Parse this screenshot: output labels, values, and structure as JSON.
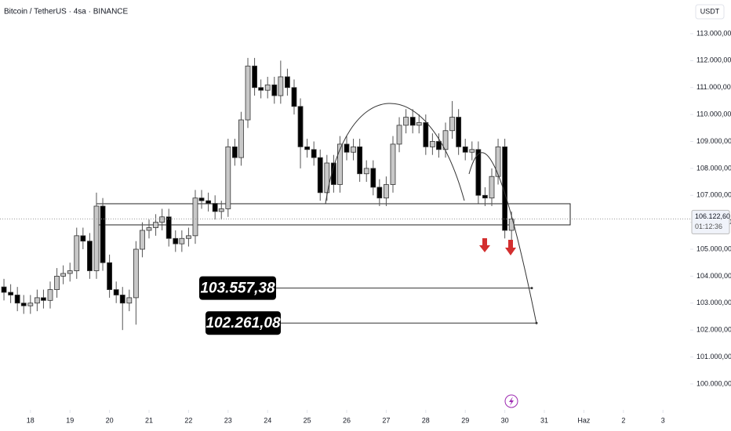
{
  "chart_data": {
    "type": "candlestick",
    "title": "Bitcoin / TetherUS · 4sa · BINANCE",
    "currency": "USDT",
    "x": [
      17.33,
      17.5,
      17.67,
      17.83,
      18.0,
      18.17,
      18.33,
      18.5,
      18.67,
      18.83,
      19.0,
      19.17,
      19.33,
      19.5,
      19.67,
      19.83,
      20.0,
      20.17,
      20.33,
      20.5,
      20.67,
      20.83,
      21.0,
      21.17,
      21.33,
      21.5,
      21.67,
      21.83,
      22.0,
      22.17,
      22.33,
      22.5,
      22.67,
      22.83,
      23.0,
      23.17,
      23.33,
      23.5,
      23.67,
      23.83,
      24.0,
      24.17,
      24.33,
      24.5,
      24.67,
      24.83,
      25.0,
      25.17,
      25.33,
      25.5,
      25.67,
      25.83,
      26.0,
      26.17,
      26.33,
      26.5,
      26.67,
      26.83,
      27.0,
      27.17,
      27.33,
      27.5,
      27.67,
      27.83,
      28.0,
      28.17,
      28.33,
      28.5,
      28.67,
      28.83,
      29.0,
      29.17,
      29.33,
      29.5,
      29.67,
      29.83,
      30.0,
      30.17
    ],
    "open": [
      103600,
      103400,
      103300,
      103000,
      102900,
      103000,
      103200,
      103100,
      103500,
      104000,
      104100,
      104200,
      105500,
      105300,
      104200,
      106600,
      104500,
      103500,
      103300,
      103000,
      103200,
      105000,
      105700,
      105800,
      106000,
      106200,
      105400,
      105200,
      105400,
      105500,
      106900,
      106800,
      106700,
      106400,
      106500,
      108800,
      108400,
      109800,
      111800,
      111000,
      110900,
      111100,
      110700,
      111400,
      111000,
      110300,
      108800,
      108700,
      108400,
      107100,
      108200,
      107400,
      108900,
      108600,
      108800,
      107800,
      108000,
      107300,
      106900,
      107400,
      108900,
      109600,
      109900,
      109600,
      109700,
      108800,
      109000,
      108700,
      109400,
      109900,
      108800,
      108600,
      108700,
      107000,
      106900,
      107700,
      108800,
      105700
    ],
    "high": [
      103900,
      103700,
      103600,
      103300,
      103300,
      103500,
      103500,
      103800,
      104300,
      104400,
      104500,
      105800,
      105800,
      105600,
      107100,
      106900,
      104800,
      103800,
      103600,
      103500,
      105300,
      106000,
      106100,
      106300,
      106500,
      106500,
      105700,
      105700,
      105800,
      107200,
      107200,
      107100,
      107000,
      106800,
      109100,
      109100,
      110100,
      112100,
      112100,
      111300,
      111400,
      111400,
      112000,
      111700,
      111300,
      110600,
      109100,
      109000,
      108700,
      108500,
      108500,
      109200,
      109200,
      109100,
      109100,
      108300,
      108300,
      107600,
      107700,
      109200,
      109900,
      110200,
      110200,
      110000,
      110000,
      109300,
      109300,
      109700,
      110500,
      110200,
      109100,
      109000,
      109000,
      107300,
      108000,
      109100,
      109100,
      106400
    ],
    "low": [
      103100,
      103000,
      102700,
      102600,
      102600,
      102700,
      102800,
      102800,
      103200,
      103700,
      103800,
      103900,
      105000,
      103900,
      103900,
      104200,
      103200,
      103000,
      102000,
      102700,
      102200,
      104700,
      105400,
      105500,
      105700,
      105100,
      104900,
      104900,
      105100,
      105200,
      106500,
      106400,
      106100,
      106100,
      106200,
      108100,
      108100,
      109500,
      110700,
      110600,
      110600,
      110400,
      110400,
      110700,
      110000,
      108000,
      108400,
      108100,
      106800,
      106800,
      107100,
      107100,
      108300,
      108300,
      107500,
      107500,
      107000,
      106600,
      106600,
      107100,
      108600,
      109300,
      109300,
      109300,
      108500,
      108500,
      108400,
      108400,
      109100,
      108500,
      108300,
      108300,
      106700,
      106600,
      106600,
      107400,
      105400,
      104900
    ],
    "close": [
      103400,
      103300,
      103000,
      102900,
      103000,
      103200,
      103100,
      103500,
      104000,
      104100,
      104200,
      105500,
      105300,
      104200,
      106600,
      104500,
      103500,
      103300,
      103000,
      103200,
      105000,
      105700,
      105800,
      106000,
      106200,
      105400,
      105200,
      105400,
      105500,
      106900,
      106800,
      106700,
      106400,
      106500,
      108800,
      108400,
      109800,
      111800,
      111000,
      110900,
      111100,
      110700,
      111400,
      111000,
      110300,
      108800,
      108700,
      108400,
      107100,
      108200,
      107400,
      108900,
      108600,
      108800,
      107800,
      108000,
      107300,
      106900,
      107400,
      108900,
      109600,
      109900,
      109600,
      109700,
      108800,
      109000,
      108700,
      109400,
      109900,
      108800,
      108600,
      108700,
      107000,
      106900,
      107700,
      108800,
      105700,
      106122.6
    ],
    "up_color": "#c8c8c8",
    "down_color": "#000000",
    "xlim": [
      17.23,
      34.69
    ],
    "xticks": [
      18,
      19,
      20,
      21,
      22,
      23,
      24,
      25,
      26,
      27,
      28,
      29,
      30,
      31,
      {
        "value": 32,
        "label": "Haz"
      },
      {
        "value": 33,
        "label": "2"
      },
      {
        "value": 34,
        "label": "3"
      }
    ],
    "ylim": [
      99038,
      114250
    ],
    "yticks": [
      {
        "value": 113000,
        "label": "113.000,00"
      },
      {
        "value": 112000,
        "label": "112.000,00"
      },
      {
        "value": 111000,
        "label": "111.000,00"
      },
      {
        "value": 110000,
        "label": "110.000,00"
      },
      {
        "value": 109000,
        "label": "109.000,00"
      },
      {
        "value": 108000,
        "label": "108.000,00"
      },
      {
        "value": 107000,
        "label": "107.000,00"
      },
      {
        "value": 106000,
        "label": "106.000,00"
      },
      {
        "value": 105000,
        "label": "105.000,00"
      },
      {
        "value": 104000,
        "label": "104.000,00"
      },
      {
        "value": 103000,
        "label": "103.000,00"
      },
      {
        "value": 102000,
        "label": "102.000,00"
      },
      {
        "value": 101000,
        "label": "101.000,00"
      },
      {
        "value": 100000,
        "label": "100.000,00"
      }
    ],
    "grid": false,
    "zone": {
      "high": 106688,
      "low": 105903
    },
    "levels": [
      {
        "value": 103557.38,
        "label": "103.557,38"
      },
      {
        "value": 102261.08,
        "label": "102.261,08"
      }
    ],
    "last_price": {
      "value": 106122.6,
      "label": "106.122,60"
    },
    "countdown": "01:12:36"
  }
}
